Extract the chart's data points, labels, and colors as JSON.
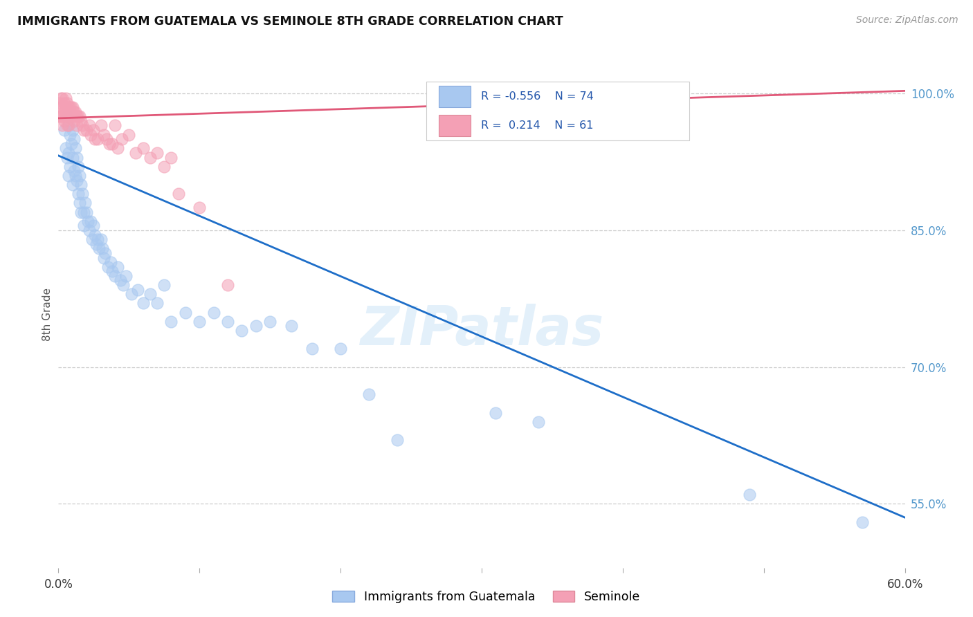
{
  "title": "IMMIGRANTS FROM GUATEMALA VS SEMINOLE 8TH GRADE CORRELATION CHART",
  "source": "Source: ZipAtlas.com",
  "ylabel": "8th Grade",
  "yticks": [
    0.55,
    0.7,
    0.85,
    1.0
  ],
  "ytick_labels": [
    "55.0%",
    "70.0%",
    "85.0%",
    "100.0%"
  ],
  "xmin": 0.0,
  "xmax": 0.6,
  "ymin": 0.48,
  "ymax": 1.035,
  "R_blue": -0.556,
  "N_blue": 74,
  "R_pink": 0.214,
  "N_pink": 61,
  "blue_color": "#A8C8F0",
  "pink_color": "#F4A0B5",
  "blue_line_color": "#1E6EC8",
  "pink_line_color": "#E05878",
  "legend_label_blue": "Immigrants from Guatemala",
  "legend_label_pink": "Seminole",
  "watermark": "ZIPatlas",
  "blue_scatter_x": [
    0.004,
    0.005,
    0.006,
    0.006,
    0.007,
    0.007,
    0.007,
    0.008,
    0.008,
    0.009,
    0.01,
    0.01,
    0.01,
    0.011,
    0.011,
    0.012,
    0.012,
    0.013,
    0.013,
    0.014,
    0.014,
    0.015,
    0.015,
    0.016,
    0.016,
    0.017,
    0.018,
    0.018,
    0.019,
    0.02,
    0.021,
    0.022,
    0.023,
    0.024,
    0.025,
    0.026,
    0.027,
    0.028,
    0.029,
    0.03,
    0.031,
    0.032,
    0.033,
    0.035,
    0.037,
    0.038,
    0.04,
    0.042,
    0.044,
    0.046,
    0.048,
    0.052,
    0.056,
    0.06,
    0.065,
    0.07,
    0.075,
    0.08,
    0.09,
    0.1,
    0.11,
    0.12,
    0.13,
    0.14,
    0.15,
    0.165,
    0.18,
    0.2,
    0.22,
    0.24,
    0.31,
    0.34,
    0.49,
    0.57
  ],
  "blue_scatter_y": [
    0.96,
    0.94,
    0.975,
    0.93,
    0.965,
    0.935,
    0.91,
    0.955,
    0.92,
    0.945,
    0.96,
    0.93,
    0.9,
    0.95,
    0.915,
    0.94,
    0.91,
    0.93,
    0.905,
    0.92,
    0.89,
    0.91,
    0.88,
    0.9,
    0.87,
    0.89,
    0.87,
    0.855,
    0.88,
    0.87,
    0.86,
    0.85,
    0.86,
    0.84,
    0.855,
    0.845,
    0.835,
    0.84,
    0.83,
    0.84,
    0.83,
    0.82,
    0.825,
    0.81,
    0.815,
    0.805,
    0.8,
    0.81,
    0.795,
    0.79,
    0.8,
    0.78,
    0.785,
    0.77,
    0.78,
    0.77,
    0.79,
    0.75,
    0.76,
    0.75,
    0.76,
    0.75,
    0.74,
    0.745,
    0.75,
    0.745,
    0.72,
    0.72,
    0.67,
    0.62,
    0.65,
    0.64,
    0.56,
    0.53
  ],
  "pink_scatter_x": [
    0.001,
    0.001,
    0.002,
    0.002,
    0.002,
    0.003,
    0.003,
    0.003,
    0.003,
    0.004,
    0.004,
    0.004,
    0.005,
    0.005,
    0.005,
    0.006,
    0.006,
    0.006,
    0.007,
    0.007,
    0.007,
    0.008,
    0.008,
    0.009,
    0.009,
    0.01,
    0.01,
    0.011,
    0.011,
    0.012,
    0.013,
    0.013,
    0.014,
    0.015,
    0.016,
    0.017,
    0.018,
    0.02,
    0.022,
    0.023,
    0.025,
    0.026,
    0.028,
    0.03,
    0.032,
    0.034,
    0.036,
    0.038,
    0.04,
    0.042,
    0.045,
    0.05,
    0.055,
    0.06,
    0.065,
    0.07,
    0.075,
    0.08,
    0.085,
    0.1,
    0.12
  ],
  "pink_scatter_y": [
    0.99,
    0.975,
    0.995,
    0.985,
    0.975,
    0.995,
    0.985,
    0.975,
    0.965,
    0.99,
    0.98,
    0.97,
    0.995,
    0.985,
    0.975,
    0.99,
    0.98,
    0.965,
    0.985,
    0.975,
    0.965,
    0.985,
    0.975,
    0.985,
    0.975,
    0.985,
    0.975,
    0.98,
    0.97,
    0.98,
    0.975,
    0.965,
    0.975,
    0.975,
    0.97,
    0.965,
    0.96,
    0.96,
    0.965,
    0.955,
    0.96,
    0.95,
    0.95,
    0.965,
    0.955,
    0.95,
    0.945,
    0.945,
    0.965,
    0.94,
    0.95,
    0.955,
    0.935,
    0.94,
    0.93,
    0.935,
    0.92,
    0.93,
    0.89,
    0.875,
    0.79
  ],
  "blue_trendline_x": [
    0.0,
    0.6
  ],
  "blue_trendline_y": [
    0.932,
    0.535
  ],
  "pink_trendline_x": [
    0.0,
    0.6
  ],
  "pink_trendline_y": [
    0.973,
    1.003
  ]
}
